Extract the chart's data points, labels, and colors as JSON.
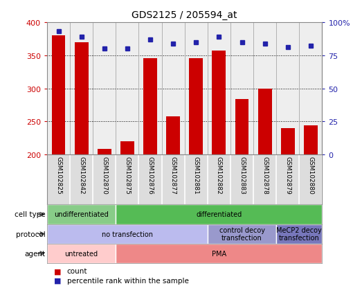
{
  "title": "GDS2125 / 205594_at",
  "samples": [
    "GSM102825",
    "GSM102842",
    "GSM102870",
    "GSM102875",
    "GSM102876",
    "GSM102877",
    "GSM102881",
    "GSM102882",
    "GSM102883",
    "GSM102878",
    "GSM102879",
    "GSM102880"
  ],
  "counts": [
    380,
    370,
    208,
    220,
    346,
    258,
    346,
    357,
    284,
    300,
    240,
    244
  ],
  "percentiles": [
    93,
    89,
    80,
    80,
    87,
    84,
    85,
    89,
    85,
    84,
    81,
    82
  ],
  "ylim_left": [
    200,
    400
  ],
  "ylim_right": [
    0,
    100
  ],
  "yticks_left": [
    200,
    250,
    300,
    350,
    400
  ],
  "yticks_right": [
    0,
    25,
    50,
    75,
    100
  ],
  "ytick_right_labels": [
    "0",
    "25",
    "50",
    "75",
    "100%"
  ],
  "bar_color": "#cc0000",
  "dot_color": "#2222aa",
  "bar_bottom": 200,
  "cell_type_colors": {
    "undifferentiated": "#88cc88",
    "differentiated": "#55bb55"
  },
  "protocol_colors": {
    "no transfection": "#bbbbee",
    "control decoy\ntransfection": "#9999cc",
    "MeCP2 decoy\ntransfection": "#7777bb"
  },
  "agent_colors": {
    "untreated": "#ffcccc",
    "PMA": "#ee8888"
  },
  "cell_type_spans": [
    [
      0,
      3,
      "undifferentiated"
    ],
    [
      3,
      12,
      "differentiated"
    ]
  ],
  "protocol_spans": [
    [
      0,
      7,
      "no transfection"
    ],
    [
      7,
      10,
      "control decoy\ntransfection"
    ],
    [
      10,
      12,
      "MeCP2 decoy\ntransfection"
    ]
  ],
  "agent_spans": [
    [
      0,
      3,
      "untreated"
    ],
    [
      3,
      12,
      "PMA"
    ]
  ],
  "row_labels": [
    "cell type",
    "protocol",
    "agent"
  ],
  "legend_items": [
    [
      "count",
      "#cc0000",
      "s"
    ],
    [
      "percentile rank within the sample",
      "#2222aa",
      "s"
    ]
  ],
  "background_color": "#ffffff",
  "axis_color_left": "#cc0000",
  "axis_color_right": "#2222aa",
  "sample_bg_color": "#dddddd",
  "border_color": "#888888"
}
